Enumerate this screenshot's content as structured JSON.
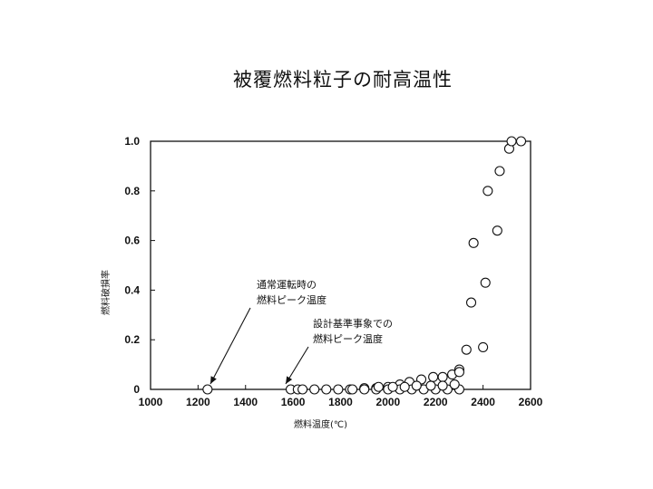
{
  "page": {
    "title": "被覆燃料粒子の耐高温性"
  },
  "chart_data": {
    "type": "scatter",
    "title": "被覆燃料粒子の耐高温性",
    "xlabel": "燃料温度(℃)",
    "ylabel": "燃料破損率",
    "xlim": [
      1000,
      2600
    ],
    "ylim": [
      0,
      1.0
    ],
    "x_ticks": [
      "1000",
      "1200",
      "1400",
      "1600",
      "1800",
      "2000",
      "2200",
      "2400",
      "2600"
    ],
    "y_ticks": [
      "0",
      "0.2",
      "0.4",
      "0.6",
      "0.8",
      "1.0"
    ],
    "grid": false,
    "legend": "none",
    "annotations": [
      {
        "lines": [
          "通常運転時の",
          "燃料ピーク温度"
        ],
        "x": 1240,
        "y": 0
      },
      {
        "lines": [
          "設計基準事象での",
          "燃料ピーク温度"
        ],
        "x": 1590,
        "y": 0
      }
    ],
    "points": [
      [
        1240,
        0.0
      ],
      [
        1590,
        0.0
      ],
      [
        1620,
        0.0
      ],
      [
        1640,
        0.0
      ],
      [
        1690,
        0.0
      ],
      [
        1740,
        0.0
      ],
      [
        1790,
        0.0
      ],
      [
        1840,
        0.0
      ],
      [
        1900,
        0.005
      ],
      [
        1950,
        0.005
      ],
      [
        2000,
        0.01
      ],
      [
        2050,
        0.02
      ],
      [
        2090,
        0.03
      ],
      [
        2140,
        0.04
      ],
      [
        2190,
        0.05
      ],
      [
        2230,
        0.05
      ],
      [
        2270,
        0.06
      ],
      [
        2300,
        0.08
      ],
      [
        1850,
        0.0
      ],
      [
        1900,
        0.0
      ],
      [
        1950,
        0.0
      ],
      [
        2000,
        0.0
      ],
      [
        2050,
        0.0
      ],
      [
        2100,
        0.0
      ],
      [
        2150,
        0.0
      ],
      [
        2200,
        0.0
      ],
      [
        2250,
        0.0
      ],
      [
        2300,
        0.0
      ],
      [
        1960,
        0.01
      ],
      [
        2020,
        0.01
      ],
      [
        2070,
        0.01
      ],
      [
        2120,
        0.015
      ],
      [
        2180,
        0.015
      ],
      [
        2230,
        0.015
      ],
      [
        2280,
        0.02
      ],
      [
        2300,
        0.07
      ],
      [
        2330,
        0.16
      ],
      [
        2360,
        0.59
      ],
      [
        2350,
        0.35
      ],
      [
        2400,
        0.17
      ],
      [
        2410,
        0.43
      ],
      [
        2420,
        0.8
      ],
      [
        2460,
        0.64
      ],
      [
        2470,
        0.88
      ],
      [
        2510,
        0.97
      ],
      [
        2520,
        1.0
      ],
      [
        2560,
        1.0
      ]
    ]
  }
}
